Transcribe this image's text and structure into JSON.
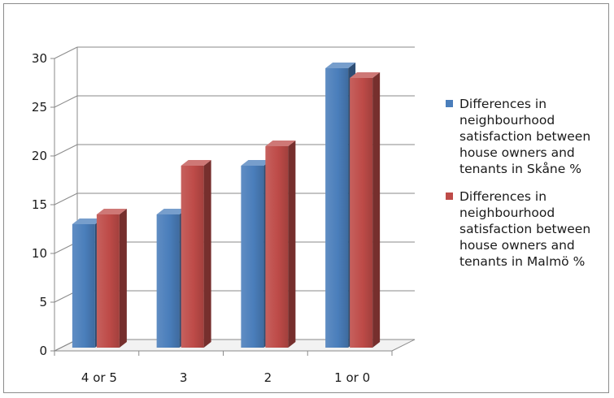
{
  "chart_data": {
    "type": "bar",
    "categories": [
      "4 or 5",
      "3",
      "2",
      "1 or 0"
    ],
    "series": [
      {
        "name": "Differences in neighbourhood satisfaction between house owners and tenants in Skåne %",
        "values": [
          13,
          14,
          19,
          29
        ],
        "color": "#4a7ebb"
      },
      {
        "name": "Differences in neighbourhood satisfaction between house owners and tenants in Malmö %",
        "values": [
          14,
          19,
          21,
          28
        ],
        "color": "#be4b48"
      }
    ],
    "y_ticks": [
      "0",
      "5",
      "10",
      "15",
      "20",
      "25",
      "30"
    ],
    "ylim": [
      0,
      30
    ],
    "grid": true,
    "legend_position": "right",
    "title": "",
    "xlabel": "",
    "ylabel": ""
  },
  "legend": {
    "items": [
      {
        "label": "Differences in neighbourhood satisfaction between house owners and tenants in Skåne %",
        "color": "#4a7ebb"
      },
      {
        "label": "Differences in neighbourhood satisfaction between house owners and tenants in Malmö %",
        "color": "#be4b48"
      }
    ]
  }
}
